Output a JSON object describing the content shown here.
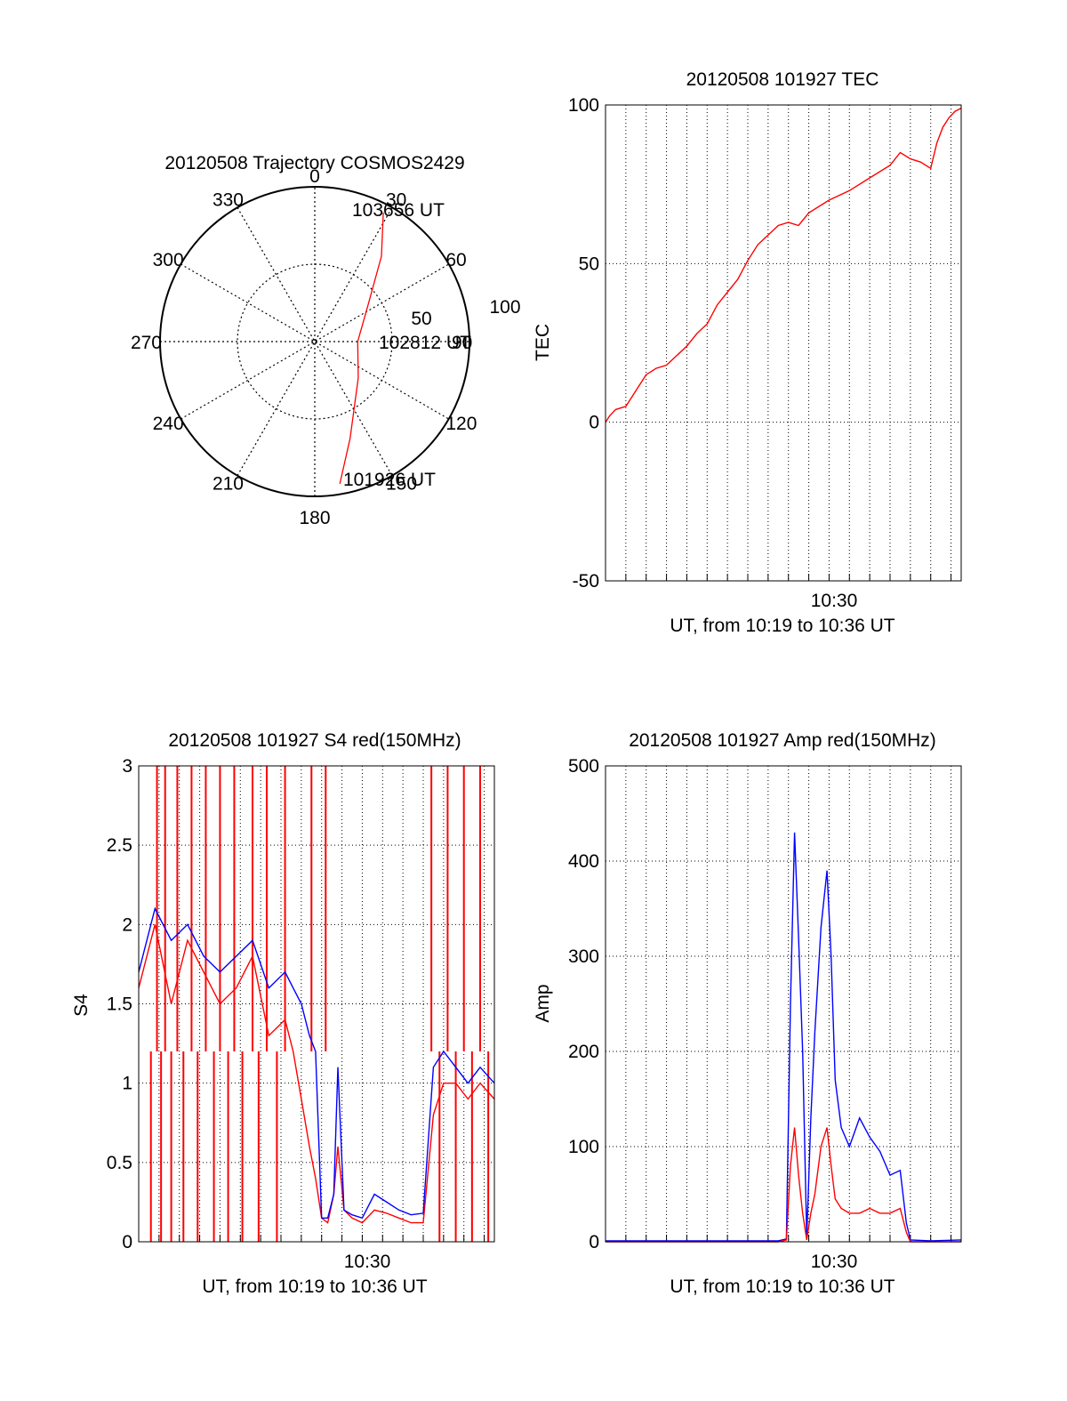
{
  "chart_data": [
    {
      "type": "polar",
      "title": "20120508 Trajectory COSMOS2429",
      "angle_labels": [
        "0",
        "30",
        "60",
        "90",
        "120",
        "150",
        "180",
        "210",
        "240",
        "270",
        "300",
        "330"
      ],
      "radius_labels": [
        "50",
        "100"
      ],
      "series": [
        {
          "color": "#ff0000",
          "points": [
            {
              "azimuth": 170,
              "elevation": 6
            },
            {
              "azimuth": 160,
              "elevation": 30
            },
            {
              "azimuth": 130,
              "elevation": 57
            },
            {
              "azimuth": 90,
              "elevation": 65
            },
            {
              "azimuth": 55,
              "elevation": 52
            },
            {
              "azimuth": 38,
              "elevation": 27
            },
            {
              "azimuth": 28,
              "elevation": 5
            }
          ]
        }
      ],
      "annotations": [
        "103656 UT",
        "102812 UT",
        "101926 UT"
      ]
    },
    {
      "type": "line",
      "title": "20120508 101927 TEC",
      "xlabel": "UT, from 10:19 to 10:36 UT",
      "ylabel": "TEC",
      "xlim": [
        19,
        36.5
      ],
      "ylim": [
        -50,
        100
      ],
      "xtick_labels": [
        "10:30"
      ],
      "ytick_labels": [
        "-50",
        "0",
        "50",
        "100"
      ],
      "grid": true,
      "series": [
        {
          "color": "#ff0000",
          "x": [
            19.0,
            19.2,
            19.5,
            20.0,
            20.5,
            21.0,
            21.5,
            22.0,
            22.5,
            23.0,
            23.5,
            24.0,
            24.5,
            25.0,
            25.5,
            26.0,
            26.5,
            27.0,
            27.5,
            28.0,
            28.5,
            29.0,
            30.0,
            31.0,
            32.0,
            33.0,
            33.5,
            34.0,
            34.5,
            35.0,
            35.3,
            35.6,
            35.9,
            36.2,
            36.5
          ],
          "y": [
            0,
            2,
            4,
            5,
            10,
            15,
            17,
            18,
            21,
            24,
            28,
            31,
            37,
            41,
            45,
            51,
            56,
            59,
            62,
            63,
            62,
            66,
            70,
            73,
            77,
            81,
            85,
            83,
            82,
            80,
            88,
            93,
            96,
            98,
            99
          ]
        }
      ]
    },
    {
      "type": "line",
      "title": "20120508 101927 S4 red(150MHz)",
      "xlabel": "UT, from 10:19 to 10:36 UT",
      "ylabel": "S4",
      "xlim": [
        19,
        36.5
      ],
      "ylim": [
        0,
        3
      ],
      "xtick_labels": [
        "10:30"
      ],
      "ytick_labels": [
        "0",
        "0.5",
        "1",
        "1.5",
        "2",
        "2.5",
        "3"
      ],
      "grid": true,
      "series": [
        {
          "name": "",
          "color": "#ff0000",
          "x": [
            19.0,
            19.8,
            20.6,
            21.4,
            22.2,
            23.0,
            23.8,
            24.6,
            25.4,
            26.2,
            26.6,
            27.0,
            27.4,
            27.7,
            28.0,
            28.3,
            28.6,
            28.8,
            29.1,
            29.5,
            30.0,
            30.6,
            31.2,
            31.8,
            32.4,
            33.0,
            33.5,
            34.0,
            34.6,
            35.2,
            35.8,
            36.5
          ],
          "y": [
            1.6,
            2.0,
            1.5,
            1.9,
            1.7,
            1.5,
            1.6,
            1.8,
            1.3,
            1.4,
            1.2,
            0.9,
            0.6,
            0.4,
            0.15,
            0.12,
            0.3,
            0.6,
            0.2,
            0.15,
            0.12,
            0.2,
            0.18,
            0.15,
            0.12,
            0.12,
            0.8,
            1.0,
            1.0,
            0.9,
            1.0,
            0.9
          ],
          "spikes": [
            {
              "x": 19.6,
              "y": 0
            },
            {
              "x": 19.9,
              "y": 3
            },
            {
              "x": 20.1,
              "y": 0
            },
            {
              "x": 20.3,
              "y": 3
            },
            {
              "x": 20.6,
              "y": 0
            },
            {
              "x": 20.9,
              "y": 3
            },
            {
              "x": 21.2,
              "y": 0
            },
            {
              "x": 21.6,
              "y": 3
            },
            {
              "x": 21.9,
              "y": 0
            },
            {
              "x": 22.3,
              "y": 3
            },
            {
              "x": 22.7,
              "y": 0
            },
            {
              "x": 23.0,
              "y": 3
            },
            {
              "x": 23.4,
              "y": 0
            },
            {
              "x": 23.7,
              "y": 3
            },
            {
              "x": 24.1,
              "y": 0
            },
            {
              "x": 24.6,
              "y": 3
            },
            {
              "x": 24.9,
              "y": 0
            },
            {
              "x": 25.3,
              "y": 3
            },
            {
              "x": 25.8,
              "y": 0
            },
            {
              "x": 26.2,
              "y": 3
            },
            {
              "x": 27.5,
              "y": 3
            },
            {
              "x": 28.2,
              "y": 3
            },
            {
              "x": 33.4,
              "y": 3
            },
            {
              "x": 33.8,
              "y": 0
            },
            {
              "x": 34.2,
              "y": 3
            },
            {
              "x": 34.6,
              "y": 0
            },
            {
              "x": 35.0,
              "y": 3
            },
            {
              "x": 35.4,
              "y": 0
            },
            {
              "x": 35.8,
              "y": 3
            },
            {
              "x": 36.2,
              "y": 0
            }
          ]
        },
        {
          "name": "",
          "color": "#0000ff",
          "x": [
            19.0,
            19.8,
            20.6,
            21.4,
            22.2,
            23.0,
            23.8,
            24.6,
            25.4,
            26.2,
            26.6,
            27.0,
            27.4,
            27.7,
            28.0,
            28.3,
            28.6,
            28.8,
            29.1,
            29.5,
            30.0,
            30.6,
            31.2,
            31.8,
            32.4,
            33.0,
            33.5,
            34.0,
            34.6,
            35.2,
            35.8,
            36.5
          ],
          "y": [
            1.7,
            2.1,
            1.9,
            2.0,
            1.8,
            1.7,
            1.8,
            1.9,
            1.6,
            1.7,
            1.6,
            1.5,
            1.3,
            1.2,
            0.15,
            0.15,
            0.3,
            1.1,
            0.2,
            0.17,
            0.15,
            0.3,
            0.25,
            0.2,
            0.17,
            0.18,
            1.1,
            1.2,
            1.1,
            1.0,
            1.1,
            1.0
          ]
        }
      ]
    },
    {
      "type": "line",
      "title": "20120508 101927 Amp red(150MHz)",
      "xlabel": "UT, from 10:19 to 10:36 UT",
      "ylabel": "Amp",
      "xlim": [
        19,
        36.5
      ],
      "ylim": [
        0,
        500
      ],
      "xtick_labels": [
        "10:30"
      ],
      "ytick_labels": [
        "0",
        "100",
        "200",
        "300",
        "400",
        "500"
      ],
      "grid": true,
      "series": [
        {
          "name": "",
          "color": "#0000ff",
          "x": [
            19.0,
            22.0,
            25.0,
            27.5,
            27.9,
            28.1,
            28.3,
            28.5,
            28.7,
            28.9,
            29.1,
            29.3,
            29.6,
            29.9,
            30.1,
            30.3,
            30.6,
            31.0,
            31.5,
            32.0,
            32.5,
            33.0,
            33.5,
            33.8,
            34.0,
            35.0,
            36.5
          ],
          "y": [
            1,
            1,
            1,
            1,
            3,
            250,
            430,
            320,
            200,
            4,
            130,
            220,
            330,
            390,
            300,
            170,
            120,
            100,
            130,
            110,
            95,
            70,
            75,
            20,
            2,
            1,
            2
          ]
        },
        {
          "name": "",
          "color": "#ff0000",
          "x": [
            19.0,
            25.0,
            27.5,
            27.9,
            28.1,
            28.3,
            28.5,
            28.7,
            28.9,
            29.1,
            29.3,
            29.6,
            29.9,
            30.1,
            30.3,
            30.6,
            31.0,
            31.5,
            32.0,
            32.5,
            33.0,
            33.5,
            33.8,
            34.0,
            36.5
          ],
          "y": [
            0,
            0,
            0,
            2,
            80,
            120,
            70,
            30,
            2,
            30,
            50,
            100,
            120,
            80,
            45,
            35,
            30,
            30,
            35,
            30,
            30,
            35,
            10,
            0,
            0
          ]
        }
      ]
    }
  ]
}
